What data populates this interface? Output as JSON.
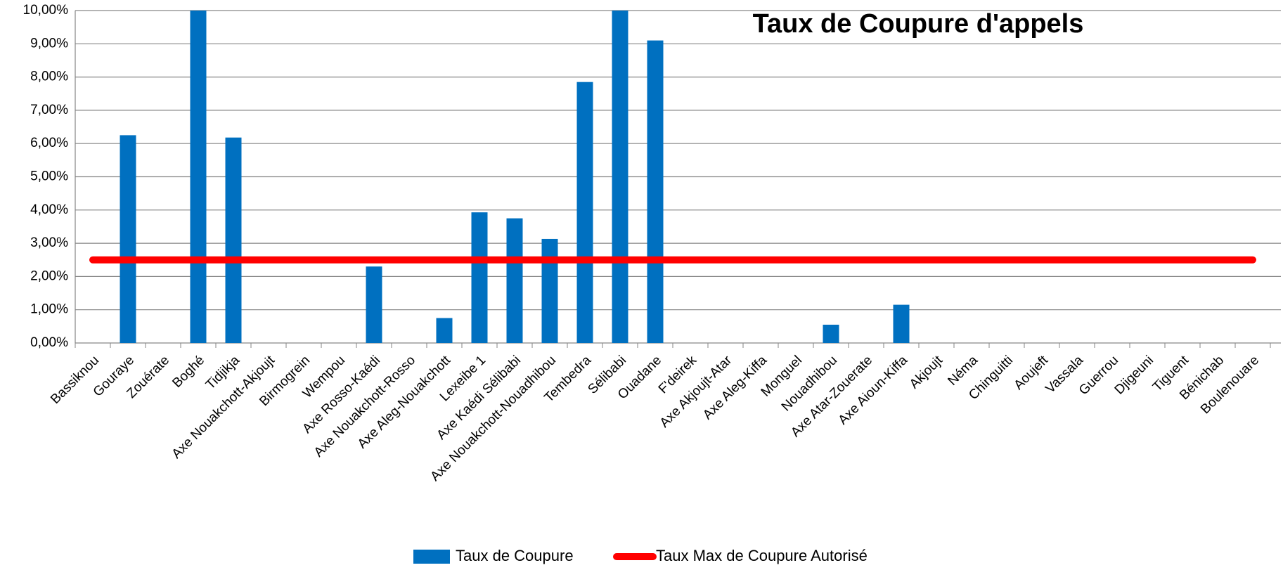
{
  "chart_data": {
    "type": "bar",
    "title": "Taux de Coupure d'appels",
    "categories": [
      "Bassiknou",
      "Gouraye",
      "Zouérate",
      "Boghé",
      "Tidjikja",
      "Axe Nouakchott-Akjoujt",
      "Birmogrein",
      "Wempou",
      "Axe Rosso-Kaédi",
      "Axe Nouakchott-Rosso",
      "Axe Aleg-Nouakchott",
      "Lexeibe 1",
      "Axe Kaédi Sélibabi",
      "Axe Nouakchott-Nouadhibou",
      "Tembedra",
      "Sélibabi",
      "Ouadane",
      "F'deirek",
      "Axe Akjoujt-Atar",
      "Axe  Aleg-Kiffa",
      "Monguel",
      "Nouadhibou",
      "Axe Atar-Zouerate",
      "Axe Aioun-Kiffa",
      "Akjoujt",
      "Néma",
      "Chinguitti",
      "Aoujeft",
      "Vassala",
      "Guerrou",
      "Djigeuni",
      "Tiguent",
      "Bénichab",
      "Boulenouare"
    ],
    "series": [
      {
        "name": "Taux de Coupure",
        "type": "bar",
        "color": "#0070c0",
        "values": [
          0,
          6.25,
          0,
          10,
          6.18,
          0,
          0,
          0,
          2.3,
          0,
          0.75,
          3.93,
          3.75,
          3.13,
          7.85,
          10,
          9.1,
          0,
          0,
          0,
          0,
          0.55,
          0,
          1.15,
          0,
          0,
          0,
          0,
          0,
          0,
          0,
          0,
          0,
          0
        ]
      },
      {
        "name": "Taux Max de Coupure Autorisé",
        "type": "line",
        "color": "#ff0000",
        "values": [
          2.5,
          2.5,
          2.5,
          2.5,
          2.5,
          2.5,
          2.5,
          2.5,
          2.5,
          2.5,
          2.5,
          2.5,
          2.5,
          2.5,
          2.5,
          2.5,
          2.5,
          2.5,
          2.5,
          2.5,
          2.5,
          2.5,
          2.5,
          2.5,
          2.5,
          2.5,
          2.5,
          2.5,
          2.5,
          2.5,
          2.5,
          2.5,
          2.5,
          2.5
        ]
      }
    ],
    "ylim": [
      0,
      10
    ],
    "yticks": [
      {
        "value": 0,
        "label": "0,00%"
      },
      {
        "value": 1,
        "label": "1,00%"
      },
      {
        "value": 2,
        "label": "2,00%"
      },
      {
        "value": 3,
        "label": "3,00%"
      },
      {
        "value": 4,
        "label": "4,00%"
      },
      {
        "value": 5,
        "label": "5,00%"
      },
      {
        "value": 6,
        "label": "6,00%"
      },
      {
        "value": 7,
        "label": "7,00%"
      },
      {
        "value": 8,
        "label": "8,00%"
      },
      {
        "value": 9,
        "label": "9,00%"
      },
      {
        "value": 10,
        "label": "10,00%"
      }
    ],
    "grid": true,
    "legend": "bottom"
  }
}
